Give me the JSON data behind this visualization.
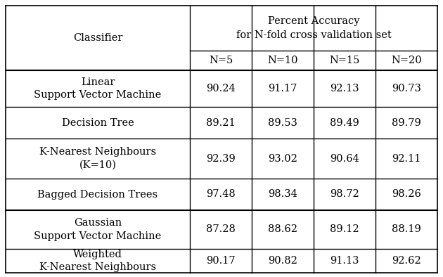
{
  "title_line1": "Percent Accuracy",
  "title_line2": "for N-fold cross validation set",
  "col_header": "Classifier",
  "n_headers": [
    "N=5",
    "N=10",
    "N=15",
    "N=20"
  ],
  "rows": [
    {
      "label": "Linear\nSupport Vector Machine",
      "values": [
        "90.24",
        "91.17",
        "92.13",
        "90.73"
      ],
      "tall": true
    },
    {
      "label": "Decision Tree",
      "values": [
        "89.21",
        "89.53",
        "89.49",
        "89.79"
      ],
      "tall": false
    },
    {
      "label": "K-Nearest Neighbours\n(K=10)",
      "values": [
        "92.39",
        "93.02",
        "90.64",
        "92.11"
      ],
      "tall": true
    },
    {
      "label": "Bagged Decision Trees",
      "values": [
        "97.48",
        "98.34",
        "98.72",
        "98.26"
      ],
      "tall": false
    },
    {
      "label": "Gaussian\nSupport Vector Machine",
      "values": [
        "87.28",
        "88.62",
        "89.12",
        "88.19"
      ],
      "tall": true
    },
    {
      "label": "Weighted\nK-Nearest Neighbours",
      "values": [
        "90.17",
        "90.82",
        "91.13",
        "92.62"
      ],
      "tall": true
    }
  ],
  "bg_color": "#ffffff",
  "text_color": "#000000",
  "line_color": "#000000",
  "font_size": 10.5
}
